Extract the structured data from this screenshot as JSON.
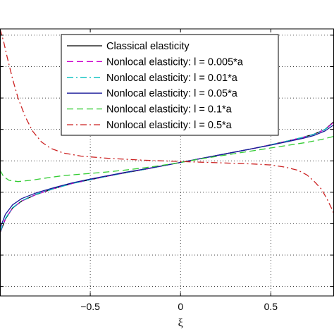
{
  "chart_data": {
    "type": "line",
    "title": "",
    "xlabel": "ξ",
    "ylabel": "",
    "xlim": [
      -1,
      0.85
    ],
    "ylim": [
      -0.43,
      0.42
    ],
    "x_ticks": [
      -0.5,
      0,
      0.5
    ],
    "x_tick_labels": [
      "−0.5",
      "0",
      "0.5"
    ],
    "y_ticks": [
      -0.4,
      -0.3,
      -0.2,
      -0.1,
      0,
      0.1,
      0.2,
      0.3,
      0.4
    ],
    "grid": true,
    "legend_position": "top-center",
    "series": [
      {
        "name": "Classical elasticity",
        "color": "#000000",
        "dash": "solid",
        "x": [
          -1.0,
          -0.97,
          -0.93,
          -0.88,
          -0.8,
          -0.7,
          -0.6,
          -0.5,
          -0.4,
          -0.3,
          -0.2,
          -0.1,
          0.0,
          0.1,
          0.2,
          0.3,
          0.4,
          0.5,
          0.6,
          0.68,
          0.74,
          0.8,
          0.85
        ],
        "y": [
          -0.23,
          -0.185,
          -0.15,
          -0.128,
          -0.107,
          -0.088,
          -0.072,
          -0.06,
          -0.048,
          -0.037,
          -0.027,
          -0.016,
          -0.005,
          0.006,
          0.017,
          0.028,
          0.039,
          0.051,
          0.064,
          0.075,
          0.085,
          0.1,
          0.125
        ]
      },
      {
        "name": "Nonlocal elasticity: l = 0.005*a",
        "color": "#cc00cc",
        "dash": "dashed",
        "x": [
          -1.0,
          -0.97,
          -0.93,
          -0.88,
          -0.8,
          -0.7,
          -0.6,
          -0.5,
          -0.4,
          -0.3,
          -0.2,
          -0.1,
          0.0,
          0.1,
          0.2,
          0.3,
          0.4,
          0.5,
          0.6,
          0.68,
          0.74,
          0.8,
          0.85
        ],
        "y": [
          -0.228,
          -0.184,
          -0.15,
          -0.128,
          -0.107,
          -0.088,
          -0.072,
          -0.06,
          -0.048,
          -0.037,
          -0.027,
          -0.016,
          -0.005,
          0.006,
          0.017,
          0.028,
          0.039,
          0.051,
          0.064,
          0.075,
          0.085,
          0.1,
          0.123
        ]
      },
      {
        "name": "Nonlocal elasticity: l = 0.01*a",
        "color": "#00bfbf",
        "dash": "dashdot",
        "x": [
          -1.0,
          -0.97,
          -0.93,
          -0.88,
          -0.8,
          -0.7,
          -0.6,
          -0.5,
          -0.4,
          -0.3,
          -0.2,
          -0.1,
          0.0,
          0.1,
          0.2,
          0.3,
          0.4,
          0.5,
          0.6,
          0.68,
          0.74,
          0.8,
          0.85
        ],
        "y": [
          -0.226,
          -0.183,
          -0.149,
          -0.127,
          -0.106,
          -0.088,
          -0.072,
          -0.06,
          -0.048,
          -0.037,
          -0.027,
          -0.016,
          -0.005,
          0.006,
          0.017,
          0.028,
          0.039,
          0.051,
          0.064,
          0.075,
          0.085,
          0.1,
          0.122
        ]
      },
      {
        "name": "Nonlocal elasticity: l = 0.05*a",
        "color": "#1a1a99",
        "dash": "solid",
        "x": [
          -1.0,
          -0.97,
          -0.93,
          -0.88,
          -0.8,
          -0.7,
          -0.6,
          -0.5,
          -0.4,
          -0.3,
          -0.2,
          -0.1,
          0.0,
          0.1,
          0.2,
          0.3,
          0.4,
          0.5,
          0.6,
          0.68,
          0.74,
          0.8,
          0.85
        ],
        "y": [
          -0.215,
          -0.17,
          -0.14,
          -0.12,
          -0.102,
          -0.085,
          -0.07,
          -0.058,
          -0.047,
          -0.036,
          -0.026,
          -0.016,
          -0.005,
          0.006,
          0.017,
          0.028,
          0.039,
          0.05,
          0.062,
          0.072,
          0.081,
          0.095,
          0.115
        ]
      },
      {
        "name": "Nonlocal elasticity: l = 0.1*a",
        "color": "#33cc33",
        "dash": "dashed",
        "x": [
          -1.0,
          -0.98,
          -0.95,
          -0.9,
          -0.83,
          -0.75,
          -0.65,
          -0.5,
          -0.4,
          -0.3,
          -0.2,
          -0.1,
          0.0,
          0.1,
          0.2,
          0.3,
          0.4,
          0.5,
          0.6,
          0.7,
          0.78,
          0.85
        ],
        "y": [
          -0.03,
          -0.05,
          -0.062,
          -0.066,
          -0.062,
          -0.055,
          -0.047,
          -0.04,
          -0.035,
          -0.029,
          -0.022,
          -0.014,
          -0.005,
          0.005,
          0.014,
          0.023,
          0.032,
          0.041,
          0.05,
          0.059,
          0.068,
          0.078
        ]
      },
      {
        "name": "Nonlocal elasticity: l = 0.5*a",
        "color": "#cc2222",
        "dash": "dashdot",
        "x": [
          -1.0,
          -0.98,
          -0.96,
          -0.93,
          -0.9,
          -0.86,
          -0.82,
          -0.77,
          -0.72,
          -0.65,
          -0.55,
          -0.4,
          -0.2,
          0.0,
          0.2,
          0.4,
          0.5,
          0.58,
          0.65,
          0.7,
          0.74,
          0.78,
          0.81,
          0.84,
          0.85
        ],
        "y": [
          0.42,
          0.38,
          0.33,
          0.26,
          0.2,
          0.14,
          0.095,
          0.06,
          0.04,
          0.025,
          0.015,
          0.008,
          0.002,
          -0.002,
          -0.006,
          -0.01,
          -0.013,
          -0.02,
          -0.03,
          -0.045,
          -0.065,
          -0.09,
          -0.12,
          -0.155,
          -0.17
        ]
      }
    ]
  }
}
